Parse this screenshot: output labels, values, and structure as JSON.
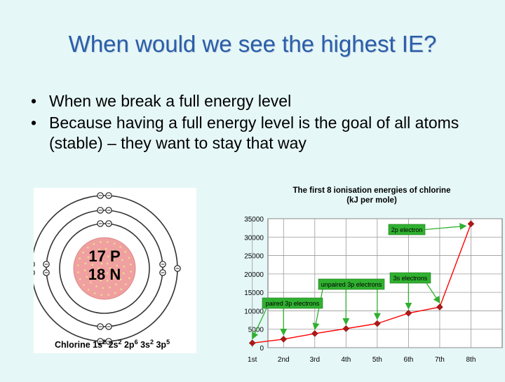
{
  "slide": {
    "title": "When would we see the highest IE?",
    "bullets": [
      "When we break a full energy level",
      "Because having a full energy level is the goal of all atoms (stable) – they want to stay that way"
    ],
    "bullet_symbol": "•"
  },
  "atom": {
    "protons": "17 P",
    "neutrons": "18 N",
    "config_element": "Chlorine",
    "config_terms": [
      {
        "orbital": "1s",
        "sup": "2"
      },
      {
        "orbital": "2s",
        "sup": "2"
      },
      {
        "orbital": "2p",
        "sup": "6"
      },
      {
        "orbital": "3s",
        "sup": "2"
      },
      {
        "orbital": "3p",
        "sup": "5"
      }
    ],
    "electron_symbol": "−",
    "colors": {
      "nucleus": "#f0a0a0",
      "nucleus_dots": "#e8d890",
      "shell": "#333333",
      "panel": "#ffffff"
    }
  },
  "chart_data": {
    "type": "line",
    "title_lines": [
      "The first 8 ionisation energies of chlorine",
      "(kJ per mole)"
    ],
    "categories": [
      "1st",
      "2nd",
      "3rd",
      "4th",
      "5th",
      "6th",
      "7th",
      "8th"
    ],
    "yticks": [
      "35000",
      "30000",
      "25000",
      "20000",
      "15000",
      "10000",
      "5000",
      "0"
    ],
    "ylim": [
      0,
      35000
    ],
    "grid": true,
    "series": [
      {
        "values": [
          1251,
          2298,
          3822,
          5159,
          6542,
          9362,
          11018,
          33604
        ]
      }
    ],
    "annotations": [
      {
        "text": "paired 3p electrons",
        "points": [
          1,
          2
        ]
      },
      {
        "text": "unpaired 3p electrons",
        "points": [
          3,
          4,
          5
        ]
      },
      {
        "text": "3s electrons",
        "points": [
          6,
          7
        ]
      },
      {
        "text": "2p electron",
        "points": [
          8
        ]
      }
    ],
    "colors": {
      "line": "#ff0000",
      "marker": "#b01818",
      "label_bg": "#30b030",
      "arrow": "#30b030",
      "plot_bg": "#ffffff"
    }
  }
}
